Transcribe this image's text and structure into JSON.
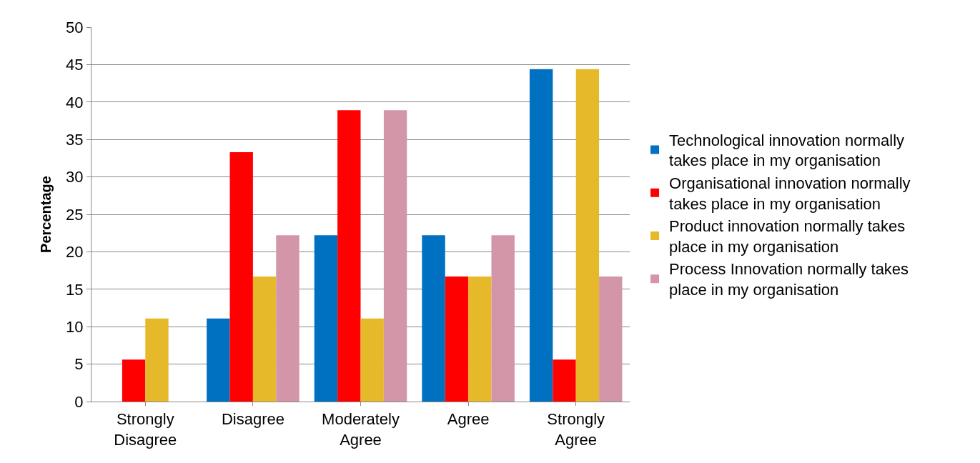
{
  "chart_data": {
    "type": "bar",
    "ylabel": "Percentage",
    "categories": [
      "Strongly Disagree",
      "Disagree",
      "Moderately Agree",
      "Agree",
      "Strongly Agree"
    ],
    "series": [
      {
        "name": "Technological innovation normally takes place in my organisation",
        "color": "#0070c0",
        "values": [
          0,
          11.1,
          22.2,
          22.2,
          44.4
        ]
      },
      {
        "name": "Organisational innovation normally takes place in my organisation",
        "color": "#ff0000",
        "values": [
          5.6,
          33.3,
          38.9,
          16.7,
          5.6
        ]
      },
      {
        "name": "Product innovation normally takes place in my organisation",
        "color": "#e6b92a",
        "values": [
          11.1,
          16.7,
          11.1,
          16.7,
          44.4
        ]
      },
      {
        "name": "Process Innovation normally takes place in my organisation",
        "color": "#d296a8",
        "values": [
          0,
          22.2,
          38.9,
          22.2,
          16.7
        ]
      }
    ],
    "ylim": [
      0,
      50
    ],
    "yticks": [
      0,
      5,
      10,
      15,
      20,
      25,
      30,
      35,
      40,
      45,
      50
    ],
    "grid": "y",
    "legend": "right"
  }
}
